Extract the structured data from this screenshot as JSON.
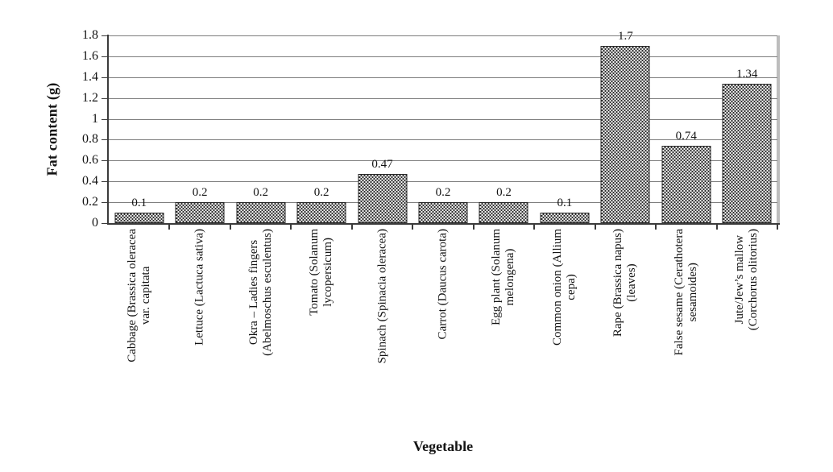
{
  "chart_data": {
    "type": "bar",
    "title": "",
    "xlabel": "Vegetable",
    "ylabel": "Fat content (g)",
    "categories": [
      "Cabbage (Brassica oleracea\nvar. capitata",
      "Lettuce (Lactuca sativa)",
      "Okra – Ladies fingers\n(Abelmoschus esculentus)",
      "Tomato (Solanum\nlycopersicum)",
      "Spinach (Spinacia oleracea)",
      "Carrot (Daucus carota)",
      "Egg plant (Solanum\nmelongena)",
      "Common onion (Allium\ncepa)",
      "Rape (Brassica napus)\n(leaves)",
      "False sesame (Cerathotera\nsesamoides)",
      "Jute/Jew’s mallow\n(Corchorus olitorius)"
    ],
    "values": [
      0.1,
      0.2,
      0.2,
      0.2,
      0.47,
      0.2,
      0.2,
      0.1,
      1.7,
      0.74,
      1.34
    ],
    "bar_labels": [
      "0.1",
      "0.2",
      "0.2",
      "0.2",
      "0.47",
      "0.2",
      "0.2",
      "0.1",
      "1.7",
      "0.74",
      "1.34"
    ],
    "ylim": [
      0,
      1.8
    ],
    "yticks": [
      0,
      0.2,
      0.4,
      0.6,
      0.8,
      1,
      1.2,
      1.4,
      1.6,
      1.8
    ],
    "ytick_labels": [
      "0",
      "0.2",
      "0.4",
      "0.6",
      "0.8",
      "1",
      "1.2",
      "1.4",
      "1.6",
      "1.8"
    ],
    "grid": "horizontal",
    "legend": "none",
    "bar_fill": "dark-checkered-hatch",
    "colors": {
      "bar_pattern": "#2c2c2c",
      "bar_background": "#fbfbfb",
      "grid": "#7d7d7d",
      "axis": "#3b3b3b",
      "plot_right_border": "#bdbdbd",
      "text": "#141414",
      "background": "#ffffff"
    }
  }
}
